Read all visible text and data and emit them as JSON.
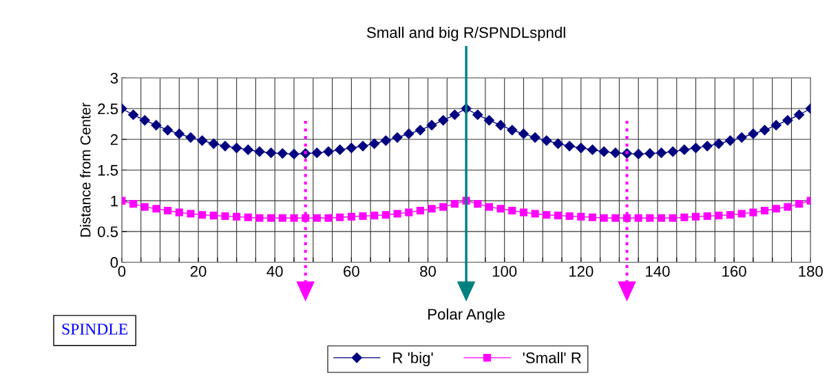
{
  "chart_data": {
    "type": "line",
    "title": "Small and big R/SPNDLspndl",
    "xlabel": "Polar Angle",
    "ylabel": "Distance from Center",
    "x": [
      0,
      3,
      6,
      9,
      12,
      15,
      18,
      21,
      24,
      27,
      30,
      33,
      36,
      39,
      42,
      45,
      48,
      51,
      54,
      57,
      60,
      63,
      66,
      69,
      72,
      75,
      78,
      81,
      84,
      87,
      90,
      93,
      96,
      99,
      102,
      105,
      108,
      111,
      114,
      117,
      120,
      123,
      126,
      129,
      132,
      135,
      138,
      141,
      144,
      147,
      150,
      153,
      156,
      159,
      162,
      165,
      168,
      171,
      174,
      177,
      180
    ],
    "series": [
      {
        "name": "R 'big'",
        "color": "#000080",
        "marker": "diamond",
        "values": [
          2.5,
          2.4,
          2.31,
          2.23,
          2.15,
          2.09,
          2.03,
          1.98,
          1.93,
          1.89,
          1.86,
          1.83,
          1.8,
          1.78,
          1.77,
          1.76,
          1.77,
          1.78,
          1.8,
          1.83,
          1.86,
          1.89,
          1.93,
          1.98,
          2.03,
          2.09,
          2.15,
          2.23,
          2.31,
          2.4,
          2.5,
          2.4,
          2.31,
          2.23,
          2.15,
          2.09,
          2.03,
          1.98,
          1.93,
          1.89,
          1.86,
          1.83,
          1.8,
          1.78,
          1.77,
          1.76,
          1.77,
          1.78,
          1.8,
          1.83,
          1.86,
          1.89,
          1.93,
          1.98,
          2.03,
          2.09,
          2.15,
          2.23,
          2.31,
          2.4,
          2.5
        ]
      },
      {
        "name": "'Small' R",
        "color": "#ff00ff",
        "marker": "square",
        "values": [
          1.0,
          0.95,
          0.9,
          0.87,
          0.84,
          0.81,
          0.79,
          0.77,
          0.76,
          0.75,
          0.74,
          0.73,
          0.72,
          0.72,
          0.72,
          0.72,
          0.72,
          0.72,
          0.72,
          0.73,
          0.74,
          0.75,
          0.76,
          0.77,
          0.79,
          0.81,
          0.84,
          0.87,
          0.9,
          0.95,
          1.0,
          0.95,
          0.9,
          0.87,
          0.84,
          0.81,
          0.79,
          0.77,
          0.76,
          0.75,
          0.74,
          0.73,
          0.72,
          0.72,
          0.72,
          0.72,
          0.72,
          0.72,
          0.72,
          0.73,
          0.74,
          0.75,
          0.76,
          0.77,
          0.79,
          0.81,
          0.84,
          0.87,
          0.9,
          0.95,
          1.0
        ]
      }
    ],
    "xlim": [
      0,
      180
    ],
    "xticks": [
      0,
      {
        "value": 5,
        "label": null
      },
      {
        "value": 10,
        "label": null
      },
      {
        "value": 15,
        "label": null
      },
      20,
      {
        "value": 25,
        "label": null
      },
      {
        "value": 30,
        "label": null
      },
      {
        "value": 35,
        "label": null
      },
      40,
      {
        "value": 45,
        "label": null
      },
      {
        "value": 50,
        "label": null
      },
      {
        "value": 55,
        "label": null
      },
      60,
      {
        "value": 65,
        "label": null
      },
      {
        "value": 70,
        "label": null
      },
      {
        "value": 75,
        "label": null
      },
      80,
      {
        "value": 85,
        "label": null
      },
      {
        "value": 90,
        "label": null
      },
      {
        "value": 95,
        "label": null
      },
      100,
      {
        "value": 105,
        "label": null
      },
      {
        "value": 110,
        "label": null
      },
      {
        "value": 115,
        "label": null
      },
      120,
      {
        "value": 125,
        "label": null
      },
      {
        "value": 130,
        "label": null
      },
      {
        "value": 135,
        "label": null
      },
      140,
      {
        "value": 145,
        "label": null
      },
      {
        "value": 150,
        "label": null
      },
      {
        "value": 155,
        "label": null
      },
      160,
      {
        "value": 165,
        "label": null
      },
      {
        "value": 170,
        "label": null
      },
      {
        "value": 175,
        "label": null
      },
      180
    ],
    "ylim": [
      0,
      3
    ],
    "yticks": [
      0,
      0.5,
      1,
      1.5,
      2,
      2.5,
      3
    ],
    "ref_lines": [
      {
        "axis": "x",
        "value": 48,
        "color": "#ff00ff",
        "line_style": "dotted"
      },
      {
        "axis": "x",
        "value": 90,
        "color": "#008080",
        "line_style": "solid"
      },
      {
        "axis": "x",
        "value": 132,
        "color": "#ff00ff",
        "line_style": "dotted"
      }
    ],
    "grid": true,
    "legend": "bottom",
    "line_style": "solid",
    "annotations": [
      "SPINDLE"
    ]
  }
}
